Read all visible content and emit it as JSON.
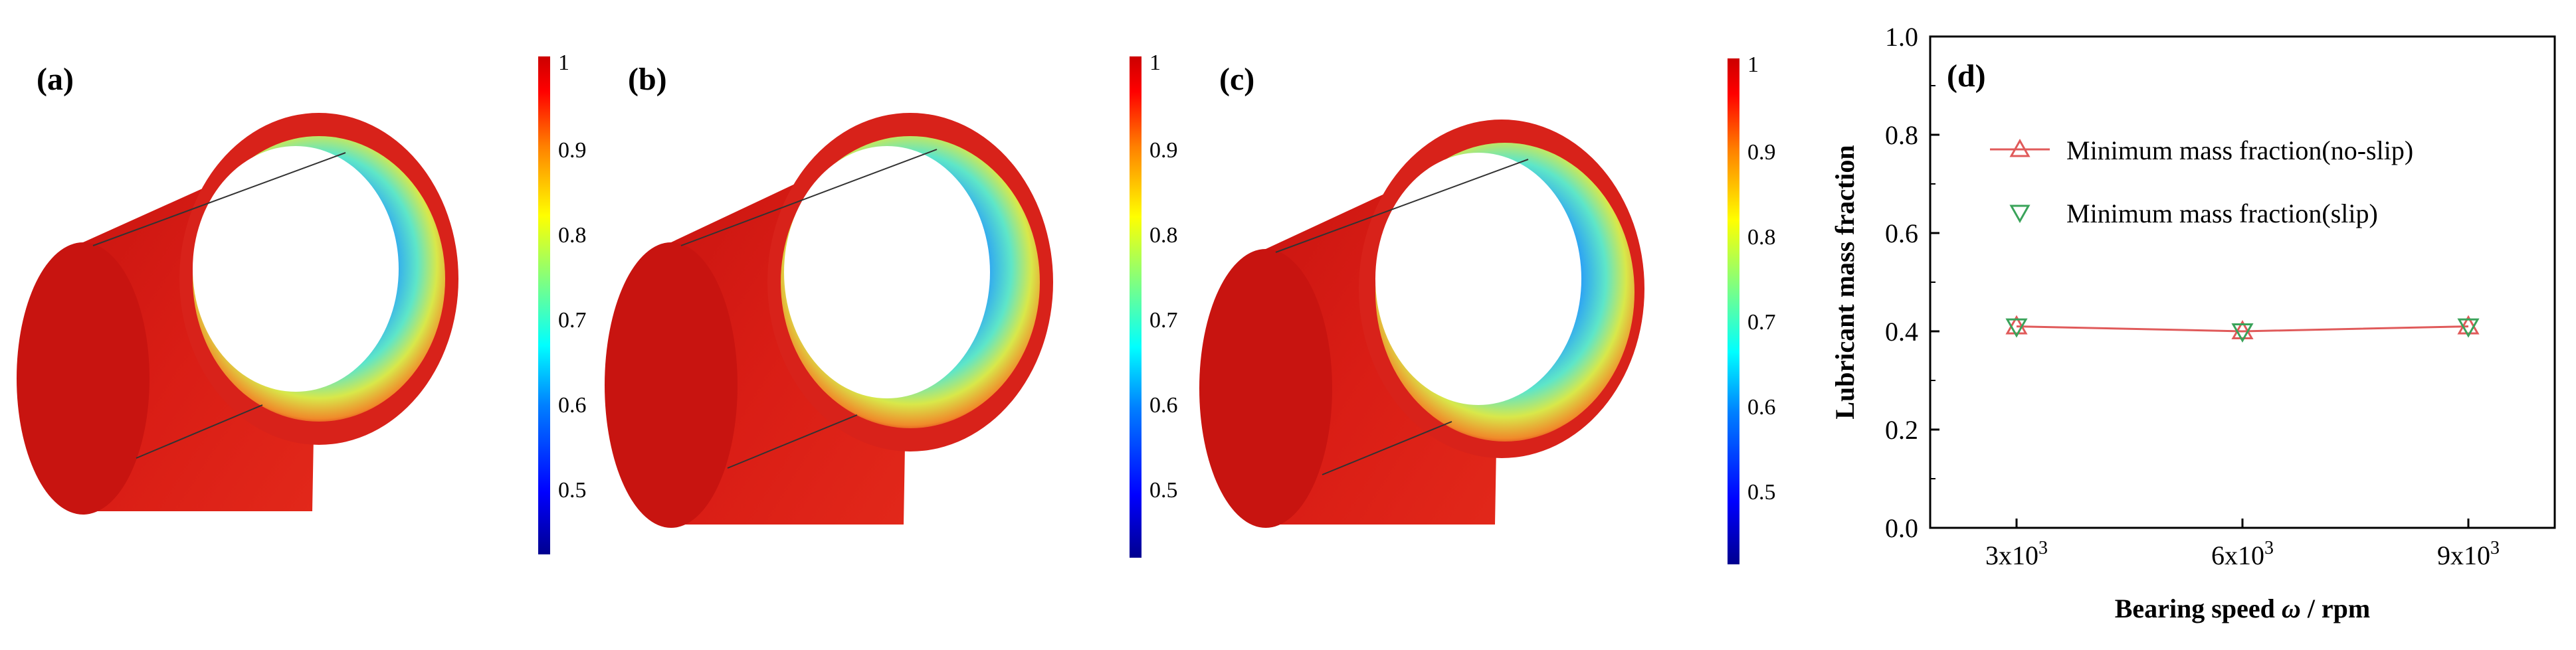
{
  "panels": [
    {
      "label": "(a)",
      "colorbar_ticks": [
        "1",
        "0.9",
        "0.8",
        "0.7",
        "0.6",
        "0.5"
      ]
    },
    {
      "label": "(b)",
      "colorbar_ticks": [
        "1",
        "0.9",
        "0.8",
        "0.7",
        "0.6",
        "0.5"
      ]
    },
    {
      "label": "(c)",
      "colorbar_ticks": [
        "1",
        "0.9",
        "0.8",
        "0.7",
        "0.6",
        "0.5"
      ]
    }
  ],
  "colormap": [
    "#00008f",
    "#0000ff",
    "#0080ff",
    "#00ffff",
    "#80ff80",
    "#ffff00",
    "#ff8000",
    "#ff0000",
    "#cc0000"
  ],
  "chart_data": {
    "type": "line",
    "panel_label": "(d)",
    "xlabel_prefix": "Bearing speed ",
    "xlabel_symbol": "ω",
    "xlabel_suffix": " / rpm",
    "ylabel": "Lubricant mass fraction",
    "categories": [
      "3x10",
      "6x10",
      "9x10"
    ],
    "category_exponent": "3",
    "ylim": [
      0.0,
      1.0
    ],
    "yticks": [
      "0.0",
      "0.2",
      "0.4",
      "0.6",
      "0.8",
      "1.0"
    ],
    "legend_position": "upper-right",
    "series": [
      {
        "name": "Minimum mass fraction(no-slip)",
        "values": [
          0.41,
          0.4,
          0.41
        ],
        "color": "#e05a5a",
        "marker": "triangle-up"
      },
      {
        "name": "Minimum mass fraction(slip)",
        "values": [
          0.41,
          0.4,
          0.41
        ],
        "color": "#3aa35a",
        "marker": "triangle-down"
      }
    ]
  }
}
